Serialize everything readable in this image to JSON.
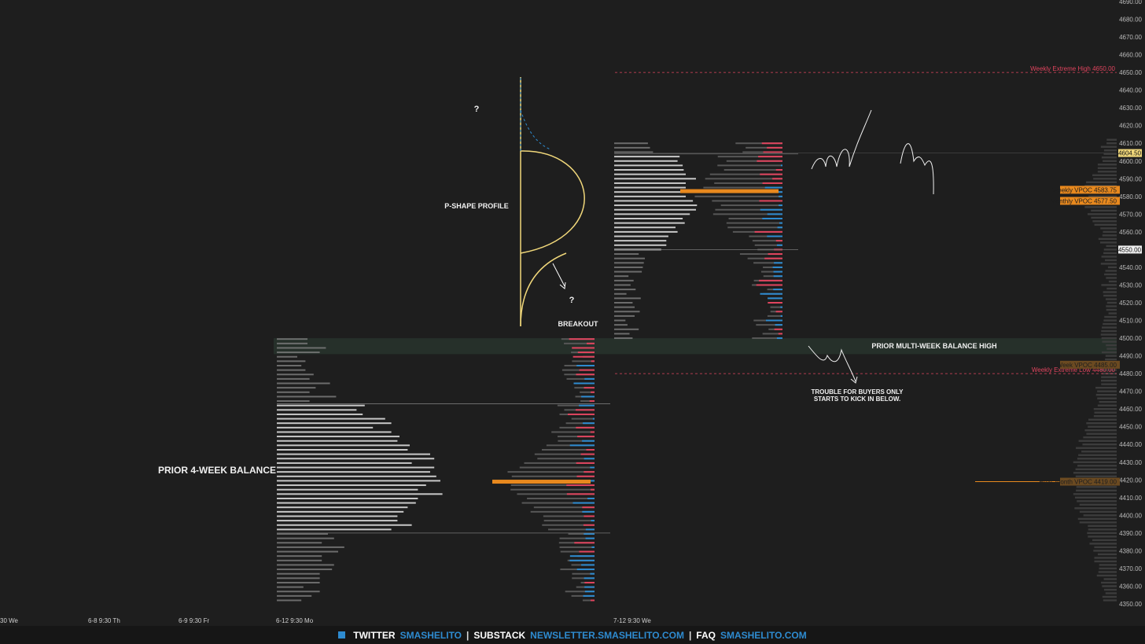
{
  "chart_data": {
    "type": "market-profile",
    "y_axis": {
      "range": [
        4345,
        4690
      ],
      "ticks": [
        "4350.00",
        "4360.00",
        "4370.00",
        "4380.00",
        "4390.00",
        "4400.00",
        "4410.00",
        "4420.00",
        "4430.00",
        "4440.00",
        "4450.00",
        "4460.00",
        "4470.00",
        "4480.00",
        "4490.00",
        "4500.00",
        "4510.00",
        "4520.00",
        "4530.00",
        "4540.00",
        "4550.00",
        "4560.00",
        "4570.00",
        "4580.00",
        "4590.00",
        "4600.00",
        "4610.00",
        "4620.00",
        "4630.00",
        "4640.00",
        "4650.00",
        "4660.00",
        "4670.00",
        "4680.00",
        "4690.00"
      ]
    },
    "x_labels": [
      "30 We",
      "6-8  9:30 Th",
      "6-9  9:30 Fr",
      "6-12  9:30 Mo",
      "7-12  9:30 We"
    ],
    "levels": [
      {
        "label": "Weekly Extreme High",
        "value": "4650.00",
        "color": "#e0445e"
      },
      {
        "label": "Weekly Extreme Low",
        "value": "4480.00",
        "color": "#e0445e"
      },
      {
        "label": "Weekly VPOC",
        "value": "4583.75",
        "color": "#e8891e"
      },
      {
        "label": "Monthly VPOC",
        "value": "4577.50",
        "color": "#e8891e"
      },
      {
        "label": "Prev. Week VPOC",
        "value": "4485.00",
        "color": "#e8891e"
      },
      {
        "label": "Prev. Month VPOC",
        "value": "4419.00",
        "color": "#e8891e"
      }
    ],
    "price_tags": [
      {
        "value": "4604.50",
        "y": 4604.5,
        "kind": "current"
      },
      {
        "value": "4550.00",
        "y": 4550,
        "kind": "white"
      }
    ],
    "balance_zone": {
      "from": 4491,
      "to": 4500,
      "label": "PRIOR MULTI-WEEK BALANCE HIGH"
    },
    "profiles": [
      {
        "name": "prior",
        "top": 4500,
        "bottom": 4352,
        "poc": 4419,
        "va_high": 4463,
        "va_low": 4390
      },
      {
        "name": "current",
        "top": 4610,
        "bottom": 4500,
        "poc": 4583,
        "va_high": 4604,
        "va_low": 4550
      }
    ],
    "annotations": [
      {
        "text": "P-SHAPE PROFILE"
      },
      {
        "text": "BREAKOUT"
      },
      {
        "text": "?"
      },
      {
        "text": "?"
      },
      {
        "text": "PRIOR 4-WEEK BALANCE"
      },
      {
        "text": "TROUBLE FOR BUYERS ONLY"
      },
      {
        "text": "STARTS TO KICK IN BELOW."
      }
    ],
    "colors": {
      "background": "#1e1e1e",
      "buy": "#2e8bd0",
      "sell": "#e0445e",
      "volume": "#5a5a5a",
      "poc": "#e8891e",
      "sketch": "#f0d77a"
    }
  },
  "footer": {
    "twitter_label": "TWITTER",
    "twitter_handle": "SMASHELITO",
    "substack_label": "SUBSTACK",
    "substack_url": "NEWSLETTER.SMASHELITO.COM",
    "faq_label": "FAQ",
    "faq_url": "SMASHELITO.COM",
    "sep": "|"
  }
}
